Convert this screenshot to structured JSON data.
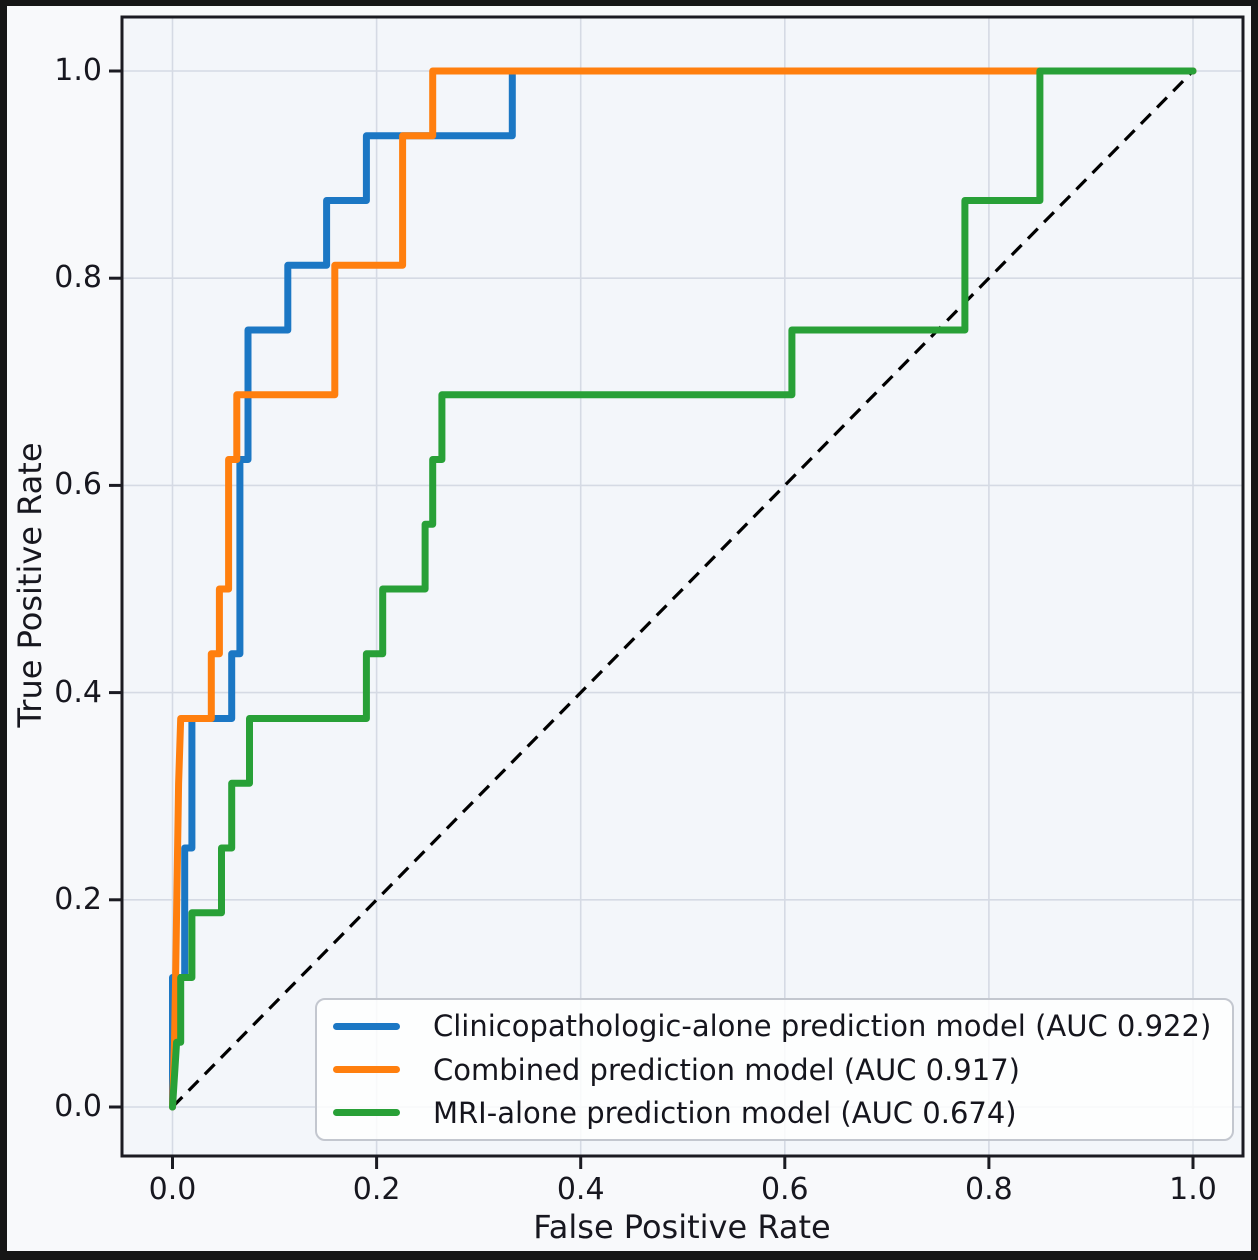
{
  "chart_data": {
    "type": "line",
    "subtype": "roc-step-curves",
    "title": "",
    "xlabel": "False Positive Rate",
    "ylabel": "True Positive Rate",
    "xlim": [
      -0.05,
      1.05
    ],
    "ylim": [
      -0.05,
      1.05
    ],
    "grid": true,
    "legend_position": "lower right",
    "x_ticks": [
      0.0,
      0.2,
      0.4,
      0.6,
      0.8,
      1.0
    ],
    "y_ticks": [
      0.0,
      0.2,
      0.4,
      0.6,
      0.8,
      1.0
    ],
    "x_tick_labels": [
      "0.0",
      "0.2",
      "0.4",
      "0.6",
      "0.8",
      "1.0"
    ],
    "y_tick_labels": [
      "0.0",
      "0.2",
      "0.4",
      "0.6",
      "0.8",
      "1.0"
    ],
    "colors": {
      "grid": "#d5dae4",
      "axes": "#1b1b22",
      "text": "#17171f",
      "plot_background": "#f3f6fa"
    },
    "reference_line": {
      "name": "chance-diagonal",
      "style": "dashed",
      "color": "#000000",
      "from": [
        0,
        0
      ],
      "to": [
        1,
        1
      ]
    },
    "series": [
      {
        "key": "clinicopathologic-alone",
        "name": "Clinicopathologic-alone prediction model (AUC 0.922)",
        "auc": 0.922,
        "color": "#1b77c4",
        "points": [
          [
            0,
            0
          ],
          [
            0,
            0.125
          ],
          [
            0.012,
            0.125
          ],
          [
            0.012,
            0.25
          ],
          [
            0.019,
            0.25
          ],
          [
            0.019,
            0.375
          ],
          [
            0.058,
            0.375
          ],
          [
            0.058,
            0.4375
          ],
          [
            0.066,
            0.4375
          ],
          [
            0.066,
            0.625
          ],
          [
            0.074,
            0.625
          ],
          [
            0.074,
            0.75
          ],
          [
            0.113,
            0.75
          ],
          [
            0.113,
            0.8125
          ],
          [
            0.151,
            0.8125
          ],
          [
            0.151,
            0.875
          ],
          [
            0.19,
            0.875
          ],
          [
            0.19,
            0.9375
          ],
          [
            0.333,
            0.9375
          ],
          [
            0.333,
            1.0
          ],
          [
            1.0,
            1.0
          ]
        ]
      },
      {
        "key": "combined",
        "name": "Combined prediction model (AUC 0.917)",
        "auc": 0.917,
        "color": "#ff7f0e",
        "points": [
          [
            0,
            0
          ],
          [
            0.002,
            0.0625
          ],
          [
            0.003,
            0.125
          ],
          [
            0.005,
            0.25
          ],
          [
            0.006,
            0.3125
          ],
          [
            0.008,
            0.375
          ],
          [
            0.038,
            0.375
          ],
          [
            0.038,
            0.4375
          ],
          [
            0.046,
            0.4375
          ],
          [
            0.046,
            0.5
          ],
          [
            0.055,
            0.5
          ],
          [
            0.055,
            0.625
          ],
          [
            0.063,
            0.625
          ],
          [
            0.063,
            0.6875
          ],
          [
            0.159,
            0.6875
          ],
          [
            0.159,
            0.8125
          ],
          [
            0.2255,
            0.8125
          ],
          [
            0.2255,
            0.9375
          ],
          [
            0.255,
            0.9375
          ],
          [
            0.255,
            1.0
          ],
          [
            1.0,
            1.0
          ]
        ]
      },
      {
        "key": "mri-alone",
        "name": "MRI-alone prediction model (AUC 0.674)",
        "auc": 0.674,
        "color": "#28a037",
        "points": [
          [
            0,
            0
          ],
          [
            0.004,
            0.0625
          ],
          [
            0.008,
            0.0625
          ],
          [
            0.008,
            0.125
          ],
          [
            0.019,
            0.125
          ],
          [
            0.019,
            0.1875
          ],
          [
            0.048,
            0.1875
          ],
          [
            0.048,
            0.25
          ],
          [
            0.058,
            0.25
          ],
          [
            0.058,
            0.3125
          ],
          [
            0.0755,
            0.3125
          ],
          [
            0.0755,
            0.375
          ],
          [
            0.19,
            0.375
          ],
          [
            0.19,
            0.4375
          ],
          [
            0.206,
            0.4375
          ],
          [
            0.206,
            0.5
          ],
          [
            0.2475,
            0.5
          ],
          [
            0.2475,
            0.5625
          ],
          [
            0.255,
            0.5625
          ],
          [
            0.255,
            0.625
          ],
          [
            0.264,
            0.625
          ],
          [
            0.264,
            0.6875
          ],
          [
            0.607,
            0.6875
          ],
          [
            0.607,
            0.75
          ],
          [
            0.7765,
            0.75
          ],
          [
            0.7765,
            0.875
          ],
          [
            0.85,
            0.875
          ],
          [
            0.85,
            1.0
          ],
          [
            1.0,
            1.0
          ]
        ]
      }
    ]
  }
}
